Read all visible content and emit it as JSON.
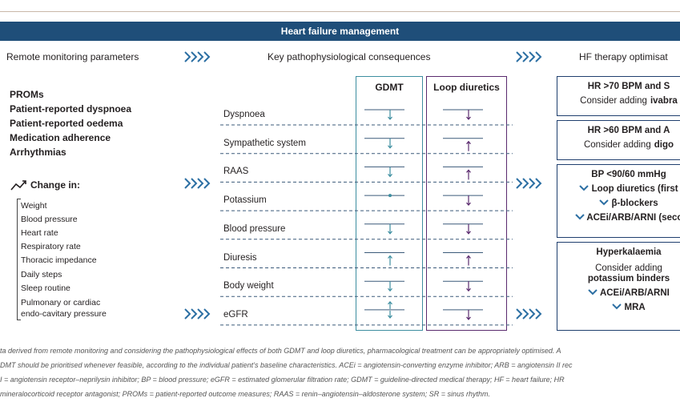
{
  "header": {
    "title": "Heart failure management"
  },
  "columns": [
    "Remote monitoring parameters",
    "Key pathophysiological consequences",
    "HF therapy optimisat"
  ],
  "proms": [
    "PROMs",
    "Patient-reported dyspnoea",
    "Patient-reported oedema",
    "Medication adherence",
    "Arrhythmias"
  ],
  "change": {
    "title": "Change in:",
    "items": [
      "Weight",
      "Blood pressure",
      "Heart rate",
      "Respiratory rate",
      "Thoracic impedance",
      "Daily steps",
      "Sleep routine",
      "Pulmonary or cardiac endo-cavitary pressure"
    ]
  },
  "effects": {
    "headers": [
      "GDMT",
      "Loop diuretics"
    ],
    "rows": [
      "Dyspnoea",
      "Sympathetic system",
      "RAAS",
      "Potassium",
      "Blood pressure",
      "Diuresis",
      "Body weight",
      "eGFR"
    ]
  },
  "therapy": [
    {
      "title": "HR >70 BPM and S",
      "text": "Consider adding",
      "drug": "ivabra"
    },
    {
      "title": "HR >60 BPM and A",
      "text": "Consider adding",
      "drug": "digo"
    },
    {
      "title": "BP <90/60 mmHg",
      "items": [
        "Loop diuretics (first",
        "β-blockers",
        "ACEi/ARB/ARNI (seco"
      ]
    },
    {
      "title": "Hyperkalaemia",
      "text": "Consider adding",
      "drug": "potassium binders",
      "items": [
        "ACEi/ARB/ARNI",
        "MRA"
      ]
    }
  ],
  "footnote": [
    "ta derived from remote monitoring and considering the pathophysiological effects of both GDMT and loop diuretics, pharmacological treatment can be appropriately optimised. A",
    "DMT should be prioritised whenever feasible, according to the individual patient’s baseline characteristics. ACEi = angiotensin-converting enzyme inhibitor; ARB = angiotensin II rec",
    "I = angiotensin receptor–neprilysin inhibitor; BP = blood pressure; eGFR = estimated glomerular filtration rate; GDMT = guideline-directed medical therapy; HF = heart failure; HR",
    "mineralocorticoid receptor antagonist; PROMs = patient-reported outcome measures; RAAS = renin–angiotensin–aldosterone system; SR = sinus rhythm."
  ]
}
